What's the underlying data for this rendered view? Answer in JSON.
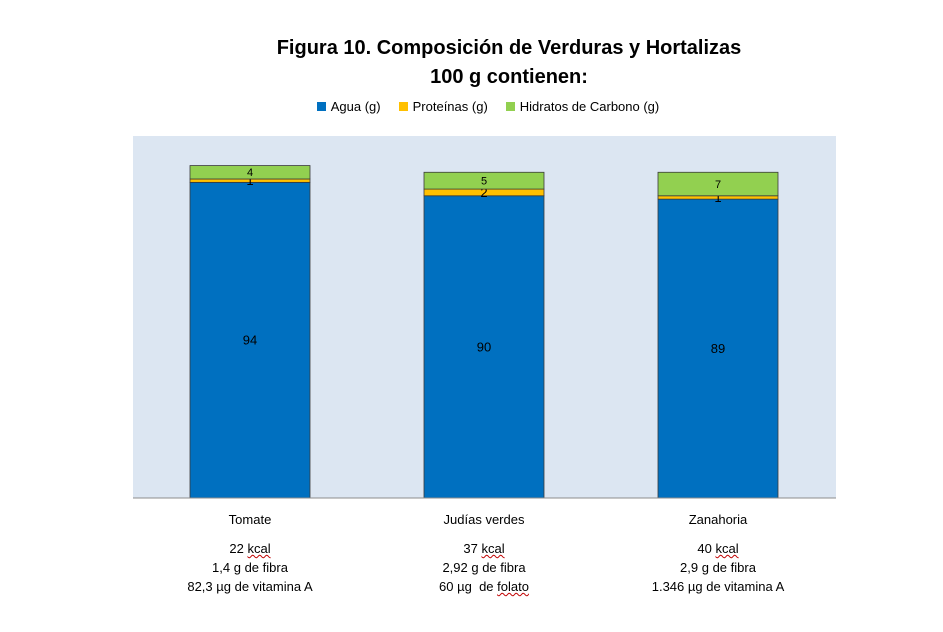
{
  "chart_data": {
    "type": "bar",
    "stacked": true,
    "title": "Figura 10. Composición de Verduras y Hortalizas",
    "subtitle": "100 g contienen:",
    "categories": [
      "Tomate",
      "Judías verdes",
      "Zanahoria"
    ],
    "series": [
      {
        "name": "Agua (g)",
        "color": "#0070C0",
        "values": [
          94,
          90,
          89
        ]
      },
      {
        "name": "Proteínas (g)",
        "color": "#FFC000",
        "values": [
          1,
          2,
          1
        ]
      },
      {
        "name": "Hidratos de Carbono (g)",
        "color": "#92D050",
        "values": [
          4,
          5,
          7
        ]
      }
    ],
    "legend_position": "top",
    "plot_background": "#DCE6F2",
    "grid": false
  },
  "notes": [
    {
      "kcal_value": "22",
      "kcal_unit": "kcal",
      "line2": "1,4 g de fibra",
      "line3": "82,3 µg de vitamina A"
    },
    {
      "kcal_value": "37",
      "kcal_unit": "kcal",
      "line2": "2,92 g de fibra",
      "line3_pre": "60 µg  de ",
      "line3_word": "folato"
    },
    {
      "kcal_value": "40",
      "kcal_unit": "kcal",
      "line2": "2,9 g de fibra",
      "line3": "1.346 µg de vitamina A"
    }
  ]
}
